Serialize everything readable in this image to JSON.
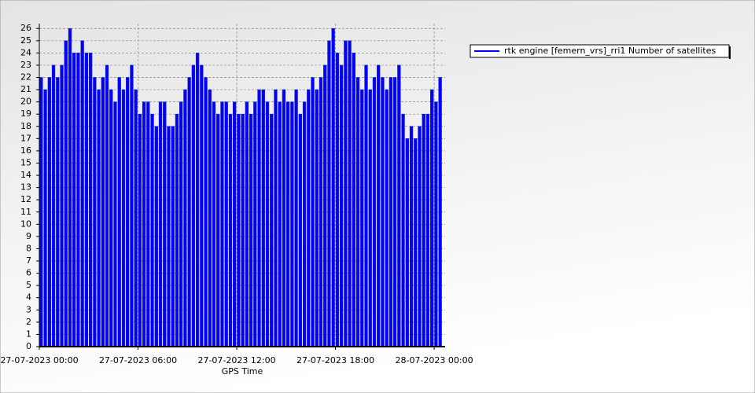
{
  "chart_data": {
    "type": "bar",
    "x_label": "GPS Time",
    "x": [
      "27-07-2023 00:00",
      "27-07-2023 00:15",
      "27-07-2023 00:30",
      "27-07-2023 00:45",
      "27-07-2023 01:00",
      "27-07-2023 01:15",
      "27-07-2023 01:30",
      "27-07-2023 01:45",
      "27-07-2023 02:00",
      "27-07-2023 02:15",
      "27-07-2023 02:30",
      "27-07-2023 02:45",
      "27-07-2023 03:00",
      "27-07-2023 03:15",
      "27-07-2023 03:30",
      "27-07-2023 03:45",
      "27-07-2023 04:00",
      "27-07-2023 04:15",
      "27-07-2023 04:30",
      "27-07-2023 04:45",
      "27-07-2023 05:00",
      "27-07-2023 05:15",
      "27-07-2023 05:30",
      "27-07-2023 05:45",
      "27-07-2023 06:00",
      "27-07-2023 06:15",
      "27-07-2023 06:30",
      "27-07-2023 06:45",
      "27-07-2023 07:00",
      "27-07-2023 07:15",
      "27-07-2023 07:30",
      "27-07-2023 07:45",
      "27-07-2023 08:00",
      "27-07-2023 08:15",
      "27-07-2023 08:30",
      "27-07-2023 08:45",
      "27-07-2023 09:00",
      "27-07-2023 09:15",
      "27-07-2023 09:30",
      "27-07-2023 09:45",
      "27-07-2023 10:00",
      "27-07-2023 10:15",
      "27-07-2023 10:30",
      "27-07-2023 10:45",
      "27-07-2023 11:00",
      "27-07-2023 11:15",
      "27-07-2023 11:30",
      "27-07-2023 11:45",
      "27-07-2023 12:00",
      "27-07-2023 12:15",
      "27-07-2023 12:30",
      "27-07-2023 12:45",
      "27-07-2023 13:00",
      "27-07-2023 13:15",
      "27-07-2023 13:30",
      "27-07-2023 13:45",
      "27-07-2023 14:00",
      "27-07-2023 14:15",
      "27-07-2023 14:30",
      "27-07-2023 14:45",
      "27-07-2023 15:00",
      "27-07-2023 15:15",
      "27-07-2023 15:30",
      "27-07-2023 15:45",
      "27-07-2023 16:00",
      "27-07-2023 16:15",
      "27-07-2023 16:30",
      "27-07-2023 16:45",
      "27-07-2023 17:00",
      "27-07-2023 17:15",
      "27-07-2023 17:30",
      "27-07-2023 17:45",
      "27-07-2023 18:00",
      "27-07-2023 18:15",
      "27-07-2023 18:30",
      "27-07-2023 18:45",
      "27-07-2023 19:00",
      "27-07-2023 19:15",
      "27-07-2023 19:30",
      "27-07-2023 19:45",
      "27-07-2023 20:00",
      "27-07-2023 20:15",
      "27-07-2023 20:30",
      "27-07-2023 20:45",
      "27-07-2023 21:00",
      "27-07-2023 21:15",
      "27-07-2023 21:30",
      "27-07-2023 21:45",
      "27-07-2023 22:00",
      "27-07-2023 22:15",
      "27-07-2023 22:30",
      "27-07-2023 22:45",
      "27-07-2023 23:00",
      "27-07-2023 23:15",
      "27-07-2023 23:30",
      "27-07-2023 23:45",
      "28-07-2023 00:00",
      "28-07-2023 00:15"
    ],
    "series": [
      {
        "name": "rtk engine [femern_vrs]_rri1 Number of satellites",
        "color": "#0000ff",
        "values": [
          22,
          21,
          22,
          23,
          22,
          23,
          25,
          26,
          24,
          24,
          25,
          24,
          24,
          22,
          21,
          22,
          23,
          21,
          20,
          22,
          21,
          22,
          23,
          21,
          19,
          20,
          20,
          19,
          18,
          20,
          20,
          18,
          18,
          19,
          20,
          21,
          22,
          23,
          24,
          23,
          22,
          21,
          20,
          19,
          20,
          20,
          19,
          20,
          19,
          19,
          20,
          19,
          20,
          21,
          21,
          20,
          19,
          21,
          20,
          21,
          20,
          20,
          21,
          19,
          20,
          21,
          22,
          21,
          22,
          23,
          25,
          26,
          24,
          23,
          25,
          25,
          24,
          22,
          21,
          23,
          21,
          22,
          23,
          22,
          21,
          22,
          22,
          23,
          19,
          17,
          18,
          17,
          18,
          19,
          19,
          21,
          20,
          22
        ]
      }
    ],
    "xlim": [
      "27-07-2023 00:00",
      "28-07-2023 00:40"
    ],
    "xticks": [
      "27-07-2023 00:00",
      "27-07-2023 06:00",
      "27-07-2023 12:00",
      "27-07-2023 18:00",
      "28-07-2023 00:00"
    ],
    "ylim": [
      0,
      26.4
    ],
    "yticks": [
      0,
      1,
      2,
      3,
      4,
      5,
      6,
      7,
      8,
      9,
      10,
      11,
      12,
      13,
      14,
      15,
      16,
      17,
      18,
      19,
      20,
      21,
      22,
      23,
      24,
      25,
      26
    ],
    "grid": true,
    "legend": "right"
  }
}
